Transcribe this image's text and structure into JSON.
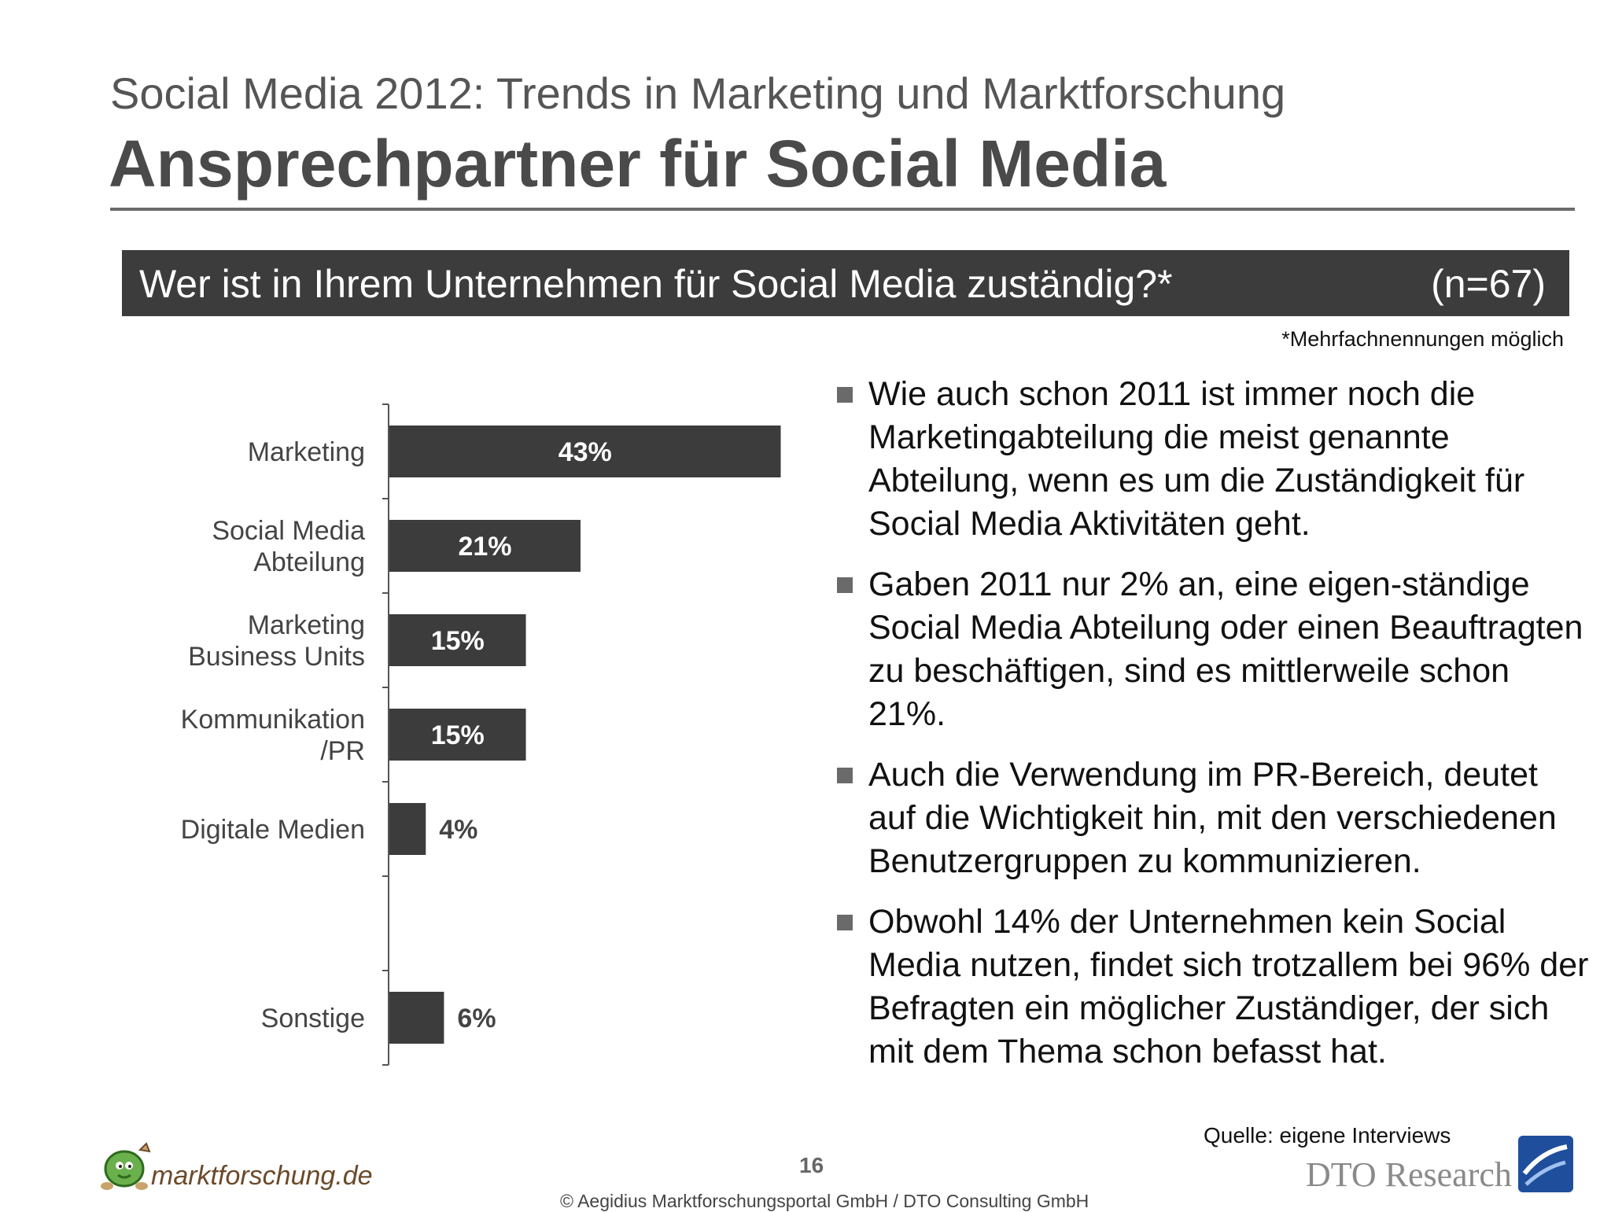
{
  "header": {
    "subtitle": "Social Media 2012: Trends in Marketing und Marktforschung",
    "title": "Ansprechpartner für Social Media"
  },
  "question": {
    "text": "Wer ist in Ihrem Unternehmen für Social Media zuständig?*",
    "sample": "(n=67)"
  },
  "footnote": "*Mehrfachnennungen möglich",
  "chart_data": {
    "type": "bar",
    "orientation": "horizontal",
    "xlim": [
      0,
      50
    ],
    "grid": false,
    "bar_color": "#3c3c3c",
    "categories": [
      [
        "Marketing"
      ],
      [
        "Social Media",
        "Abteilung"
      ],
      [
        "Marketing",
        "Business Units"
      ],
      [
        "Kommunikation",
        "/PR"
      ],
      [
        "Digitale Medien"
      ],
      [],
      [
        "Sonstige"
      ]
    ],
    "values": [
      43,
      21,
      15,
      15,
      4,
      null,
      6
    ],
    "labels": [
      "43%",
      "21%",
      "15%",
      "15%",
      "4%",
      "",
      "6%"
    ]
  },
  "bullets": [
    "Wie auch schon 2011 ist immer noch die Marketingabteilung die meist genannte Abteilung, wenn es um die Zuständigkeit für Social Media Aktivitäten geht.",
    "Gaben 2011 nur 2% an, eine eigen-ständige Social Media Abteilung oder einen Beauftragten zu beschäftigen, sind es mittlerweile schon 21%.",
    "Auch die Verwendung im PR-Bereich, deutet auf die Wichtigkeit hin, mit den verschiedenen Benutzergruppen zu kommunizieren.",
    "Obwohl 14% der Unternehmen kein Social Media nutzen, findet sich trotzallem bei 96% der Befragten ein möglicher Zuständiger, der sich mit dem Thema schon befasst hat."
  ],
  "footer": {
    "source": "Quelle: eigene Interviews",
    "page_number": "16",
    "copyright": "© Aegidius Marktforschungsportal GmbH / DTO Consulting GmbH",
    "logo_left": "marktforschung.de",
    "logo_right": "DTO Research"
  }
}
